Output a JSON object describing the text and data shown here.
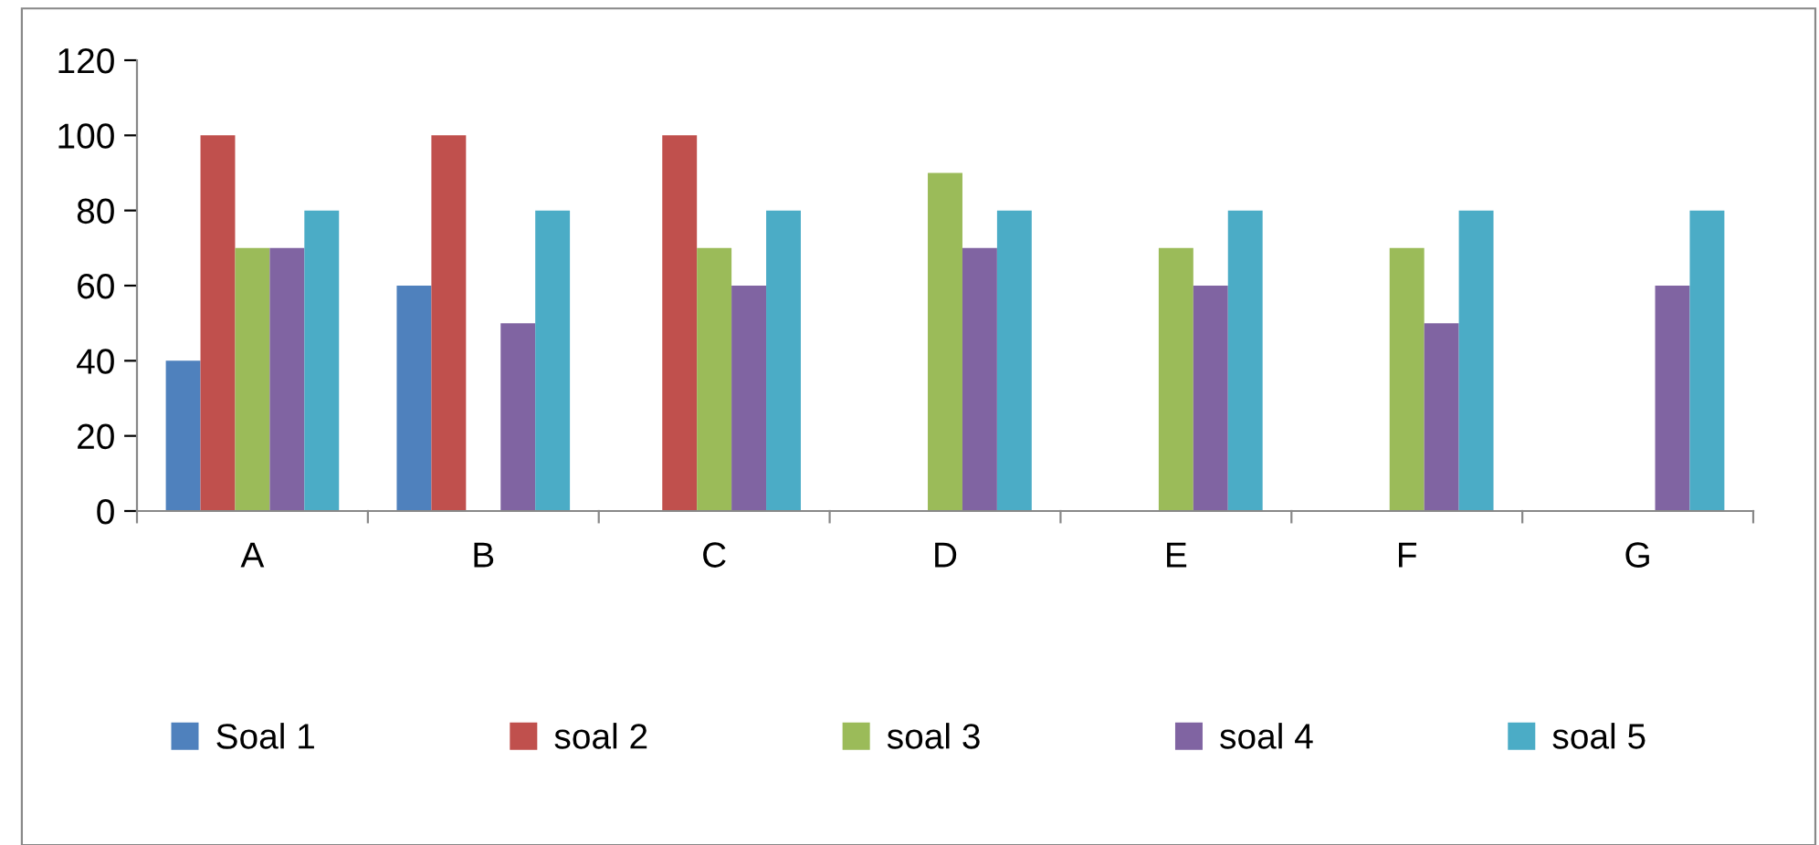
{
  "chart_data": {
    "type": "bar",
    "categories": [
      "A",
      "B",
      "C",
      "D",
      "E",
      "F",
      "G"
    ],
    "series": [
      {
        "name": "Soal 1",
        "color": "#4f81bd",
        "values": [
          40,
          60,
          null,
          null,
          null,
          null,
          null
        ]
      },
      {
        "name": "soal 2",
        "color": "#c0504d",
        "values": [
          100,
          100,
          100,
          null,
          null,
          null,
          null
        ]
      },
      {
        "name": "soal 3",
        "color": "#9bbb59",
        "values": [
          70,
          null,
          70,
          90,
          70,
          70,
          null
        ]
      },
      {
        "name": "soal 4",
        "color": "#8064a2",
        "values": [
          70,
          50,
          60,
          70,
          60,
          50,
          60
        ]
      },
      {
        "name": "soal 5",
        "color": "#4bacc6",
        "values": [
          80,
          80,
          80,
          80,
          80,
          80,
          80
        ]
      }
    ],
    "ylim": [
      0,
      120
    ],
    "yticks": [
      0,
      20,
      40,
      60,
      80,
      100,
      120
    ],
    "grid": false,
    "legend": "bottom"
  }
}
